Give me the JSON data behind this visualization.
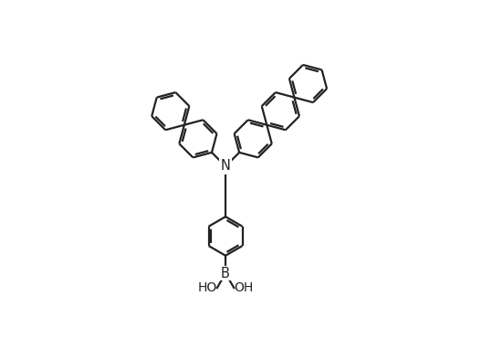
{
  "background_color": "#ffffff",
  "line_color": "#222222",
  "line_width": 1.6,
  "figsize": [
    5.28,
    3.93
  ],
  "dpi": 100,
  "text_color": "#222222",
  "font_size": 10.5,
  "N_label": "N",
  "B_label": "B",
  "HO_label": "HO",
  "OH_label": "OH"
}
